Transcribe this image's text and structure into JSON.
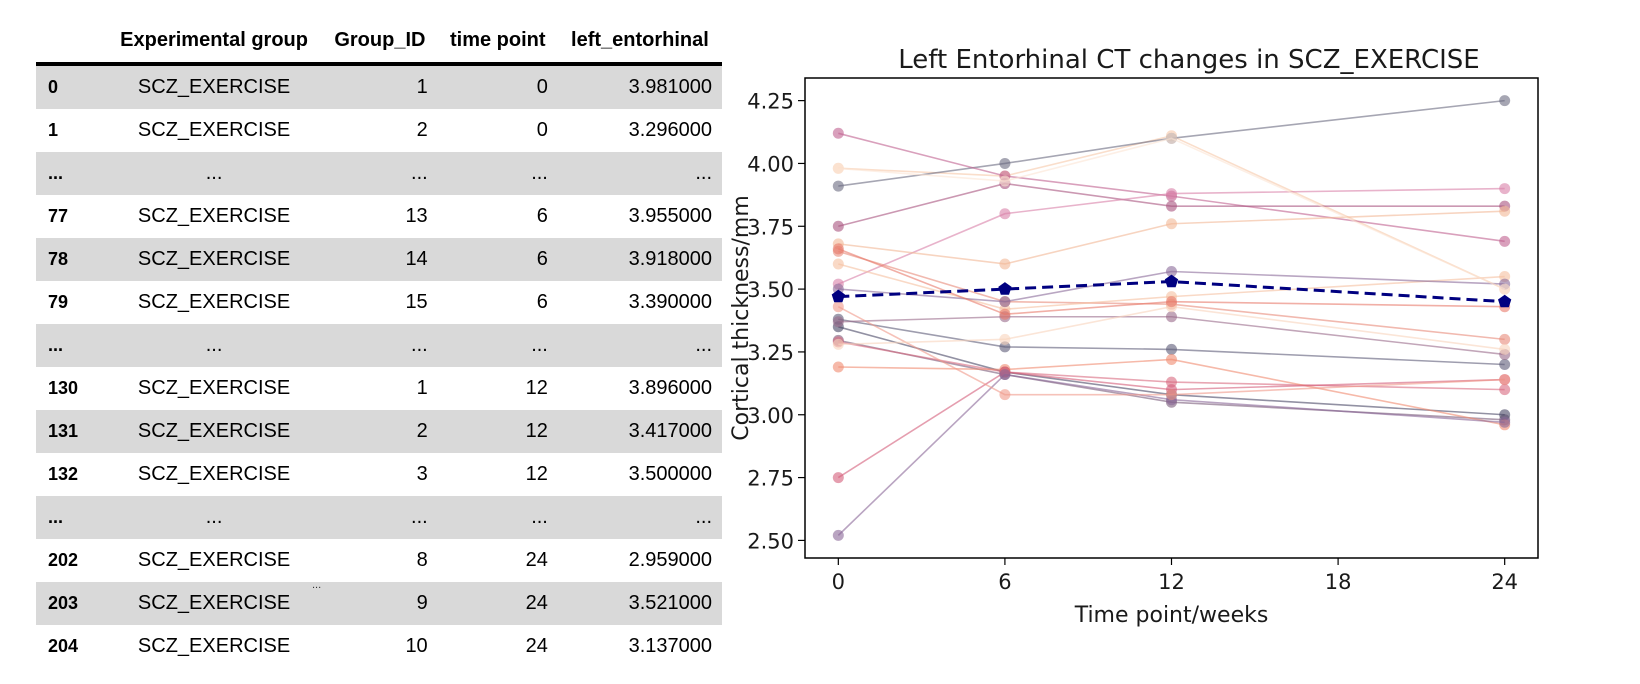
{
  "table": {
    "columns": [
      "",
      "Experimental group",
      "Group_ID",
      "time point",
      "left_entorhinal"
    ],
    "rows": [
      [
        "0",
        "SCZ_EXERCISE",
        "1",
        "0",
        "3.981000"
      ],
      [
        "1",
        "SCZ_EXERCISE",
        "2",
        "0",
        "3.296000"
      ],
      [
        "...",
        "...",
        "...",
        "...",
        "..."
      ],
      [
        "77",
        "SCZ_EXERCISE",
        "13",
        "6",
        "3.955000"
      ],
      [
        "78",
        "SCZ_EXERCISE",
        "14",
        "6",
        "3.918000"
      ],
      [
        "79",
        "SCZ_EXERCISE",
        "15",
        "6",
        "3.390000"
      ],
      [
        "...",
        "...",
        "...",
        "...",
        "..."
      ],
      [
        "130",
        "SCZ_EXERCISE",
        "1",
        "12",
        "3.896000"
      ],
      [
        "131",
        "SCZ_EXERCISE",
        "2",
        "12",
        "3.417000"
      ],
      [
        "132",
        "SCZ_EXERCISE",
        "3",
        "12",
        "3.500000"
      ],
      [
        "...",
        "...",
        "...",
        "...",
        "..."
      ],
      [
        "202",
        "SCZ_EXERCISE",
        "8",
        "24",
        "2.959000"
      ],
      [
        "203",
        "SCZ_EXERCISE",
        "9",
        "24",
        "3.521000"
      ],
      [
        "204",
        "SCZ_EXERCISE",
        "10",
        "24",
        "3.137000"
      ]
    ],
    "stray_mark": "..."
  },
  "chart_data": {
    "type": "line",
    "title": "Left Entorhinal CT changes in SCZ_EXERCISE",
    "xlabel": "Time point/weeks",
    "ylabel": "Cortical thickness/mm",
    "x": [
      0,
      6,
      12,
      24
    ],
    "xticks": [
      0,
      6,
      12,
      18,
      24
    ],
    "yticks": [
      2.5,
      2.75,
      3.0,
      3.25,
      3.5,
      3.75,
      4.0,
      4.25
    ],
    "ytick_labels": [
      "2.50",
      "2.75",
      "3.00",
      "3.25",
      "3.50",
      "3.75",
      "4.00",
      "4.25"
    ],
    "xlim": [
      -1.2,
      25.2
    ],
    "ylim": [
      2.43,
      4.34
    ],
    "grid": false,
    "series": [
      {
        "values": [
          3.981,
          3.95,
          4.11,
          3.5
        ],
        "color": "#f6c8a8"
      },
      {
        "values": [
          3.296,
          3.16,
          3.05,
          2.98
        ],
        "color": "#7a5b7a"
      },
      {
        "values": [
          3.35,
          3.17,
          3.08,
          3.0
        ],
        "color": "#4a4866"
      },
      {
        "values": [
          3.91,
          4.0,
          4.1,
          4.25
        ],
        "color": "#6b6a80"
      },
      {
        "values": [
          4.12,
          3.95,
          3.87,
          3.69
        ],
        "color": "#c06090"
      },
      {
        "values": [
          3.75,
          3.92,
          3.83,
          3.83
        ],
        "color": "#a8547e"
      },
      {
        "values": [
          3.52,
          3.8,
          3.88,
          3.9
        ],
        "color": "#d880a8"
      },
      {
        "values": [
          3.68,
          3.6,
          3.76,
          3.81
        ],
        "color": "#f2b896"
      },
      {
        "values": [
          3.65,
          3.45,
          3.44,
          3.3
        ],
        "color": "#e88a7a"
      },
      {
        "values": [
          3.6,
          3.42,
          3.47,
          3.55
        ],
        "color": "#f5c0a0"
      },
      {
        "values": [
          3.5,
          3.45,
          3.57,
          3.52
        ],
        "color": "#8a6a9a"
      },
      {
        "values": [
          3.38,
          3.27,
          3.26,
          3.2
        ],
        "color": "#5e5c78"
      },
      {
        "values": [
          3.37,
          3.39,
          3.39,
          3.24
        ],
        "color": "#9a6a8a"
      },
      {
        "values": [
          3.29,
          3.17,
          3.13,
          3.1
        ],
        "color": "#d86a80"
      },
      {
        "values": [
          3.19,
          3.18,
          3.22,
          2.96
        ],
        "color": "#f08a70"
      },
      {
        "values": [
          2.75,
          3.17,
          3.1,
          3.14
        ],
        "color": "#d45d7a"
      },
      {
        "values": [
          2.52,
          3.16,
          3.06,
          2.97
        ],
        "color": "#8a6898"
      },
      {
        "values": [
          3.43,
          3.08,
          3.08,
          3.14
        ],
        "color": "#f09a8a"
      },
      {
        "values": [
          3.28,
          3.3,
          3.43,
          3.26
        ],
        "color": "#f8d4bc"
      },
      {
        "values": [
          3.98,
          3.93,
          4.1,
          3.5
        ],
        "color": "#fbe4d4"
      },
      {
        "values": [
          3.66,
          3.4,
          3.45,
          3.43
        ],
        "color": "#e87a6a"
      }
    ],
    "mean_series": {
      "values": [
        3.47,
        3.5,
        3.53,
        3.45
      ],
      "color": "#000080",
      "style": "dashed",
      "marker": "pentagon"
    }
  }
}
